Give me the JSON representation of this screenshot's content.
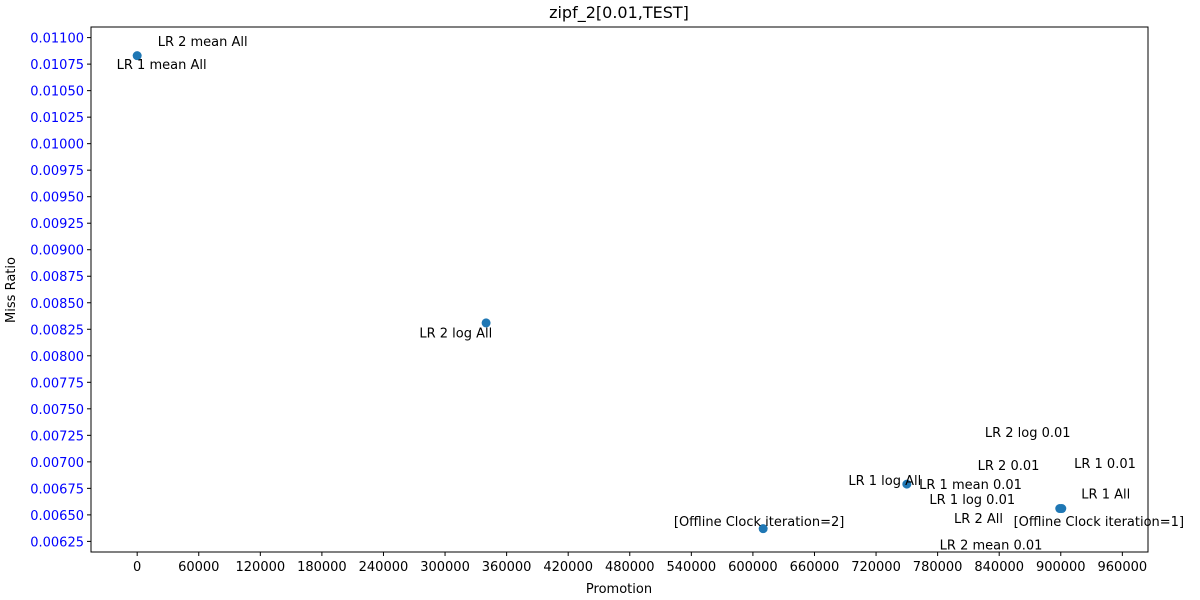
{
  "chart_data": {
    "type": "scatter",
    "title": "zipf_2[0.01,TEST]",
    "xlabel": "Promotion",
    "ylabel": "Miss Ratio",
    "xlim": [
      -45000,
      985000
    ],
    "ylim": [
      0.00615,
      0.0111
    ],
    "xticks": [
      0,
      60000,
      120000,
      180000,
      240000,
      300000,
      360000,
      420000,
      480000,
      540000,
      600000,
      660000,
      720000,
      780000,
      840000,
      900000,
      960000
    ],
    "xtick_labels": [
      "0",
      "60000",
      "120000",
      "180000",
      "240000",
      "300000",
      "360000",
      "420000",
      "480000",
      "540000",
      "600000",
      "660000",
      "720000",
      "780000",
      "840000",
      "900000",
      "960000"
    ],
    "yticks": [
      0.00625,
      0.0065,
      0.00675,
      0.007,
      0.00725,
      0.0075,
      0.00775,
      0.008,
      0.00825,
      0.0085,
      0.00875,
      0.009,
      0.00925,
      0.0095,
      0.00975,
      0.01,
      0.01025,
      0.0105,
      0.01075,
      0.011
    ],
    "ytick_labels": [
      "0.00625",
      "0.00650",
      "0.00675",
      "0.00700",
      "0.00725",
      "0.00750",
      "0.00775",
      "0.00800",
      "0.00825",
      "0.00850",
      "0.00875",
      "0.00900",
      "0.00925",
      "0.00950",
      "0.00975",
      "0.01000",
      "0.01025",
      "0.01050",
      "0.01075",
      "0.01100"
    ],
    "ytick_color": "#0000ff",
    "marker_color": "#1f77b4",
    "grid": false,
    "points": [
      {
        "x": 0,
        "y": 0.01083
      },
      {
        "x": 340000,
        "y": 0.00831
      },
      {
        "x": 750000,
        "y": 0.00679
      },
      {
        "x": 610000,
        "y": 0.00637
      },
      {
        "x": 899000,
        "y": 0.00656
      },
      {
        "x": 901000,
        "y": 0.00656
      }
    ],
    "annotations": [
      {
        "text": "LR 2 mean All",
        "x": 20000,
        "y": 0.01097
      },
      {
        "text": "LR 1 mean All",
        "x": -20000,
        "y": 0.01075
      },
      {
        "text": "LR 2 log All",
        "x": 275000,
        "y": 0.00822
      },
      {
        "text": "LR 2 log 0.01",
        "x": 826000,
        "y": 0.00728
      },
      {
        "text": "LR 2 0.01",
        "x": 819000,
        "y": 0.00697
      },
      {
        "text": "LR 1 0.01",
        "x": 913000,
        "y": 0.00699
      },
      {
        "text": "LR 1 log All",
        "x": 693000,
        "y": 0.00683
      },
      {
        "text": "LR 1 mean 0.01",
        "x": 762000,
        "y": 0.00679
      },
      {
        "text": "LR 1 All",
        "x": 920000,
        "y": 0.0067
      },
      {
        "text": "LR 1 log 0.01",
        "x": 772000,
        "y": 0.00665
      },
      {
        "text": "LR 2 All",
        "x": 796000,
        "y": 0.00647
      },
      {
        "text": "[Offline Clock iteration=2]",
        "x": 523000,
        "y": 0.00644
      },
      {
        "text": "[Offline Clock iteration=1]",
        "x": 854000,
        "y": 0.00644
      },
      {
        "text": "LR 2 mean 0.01",
        "x": 782000,
        "y": 0.00622
      }
    ]
  }
}
